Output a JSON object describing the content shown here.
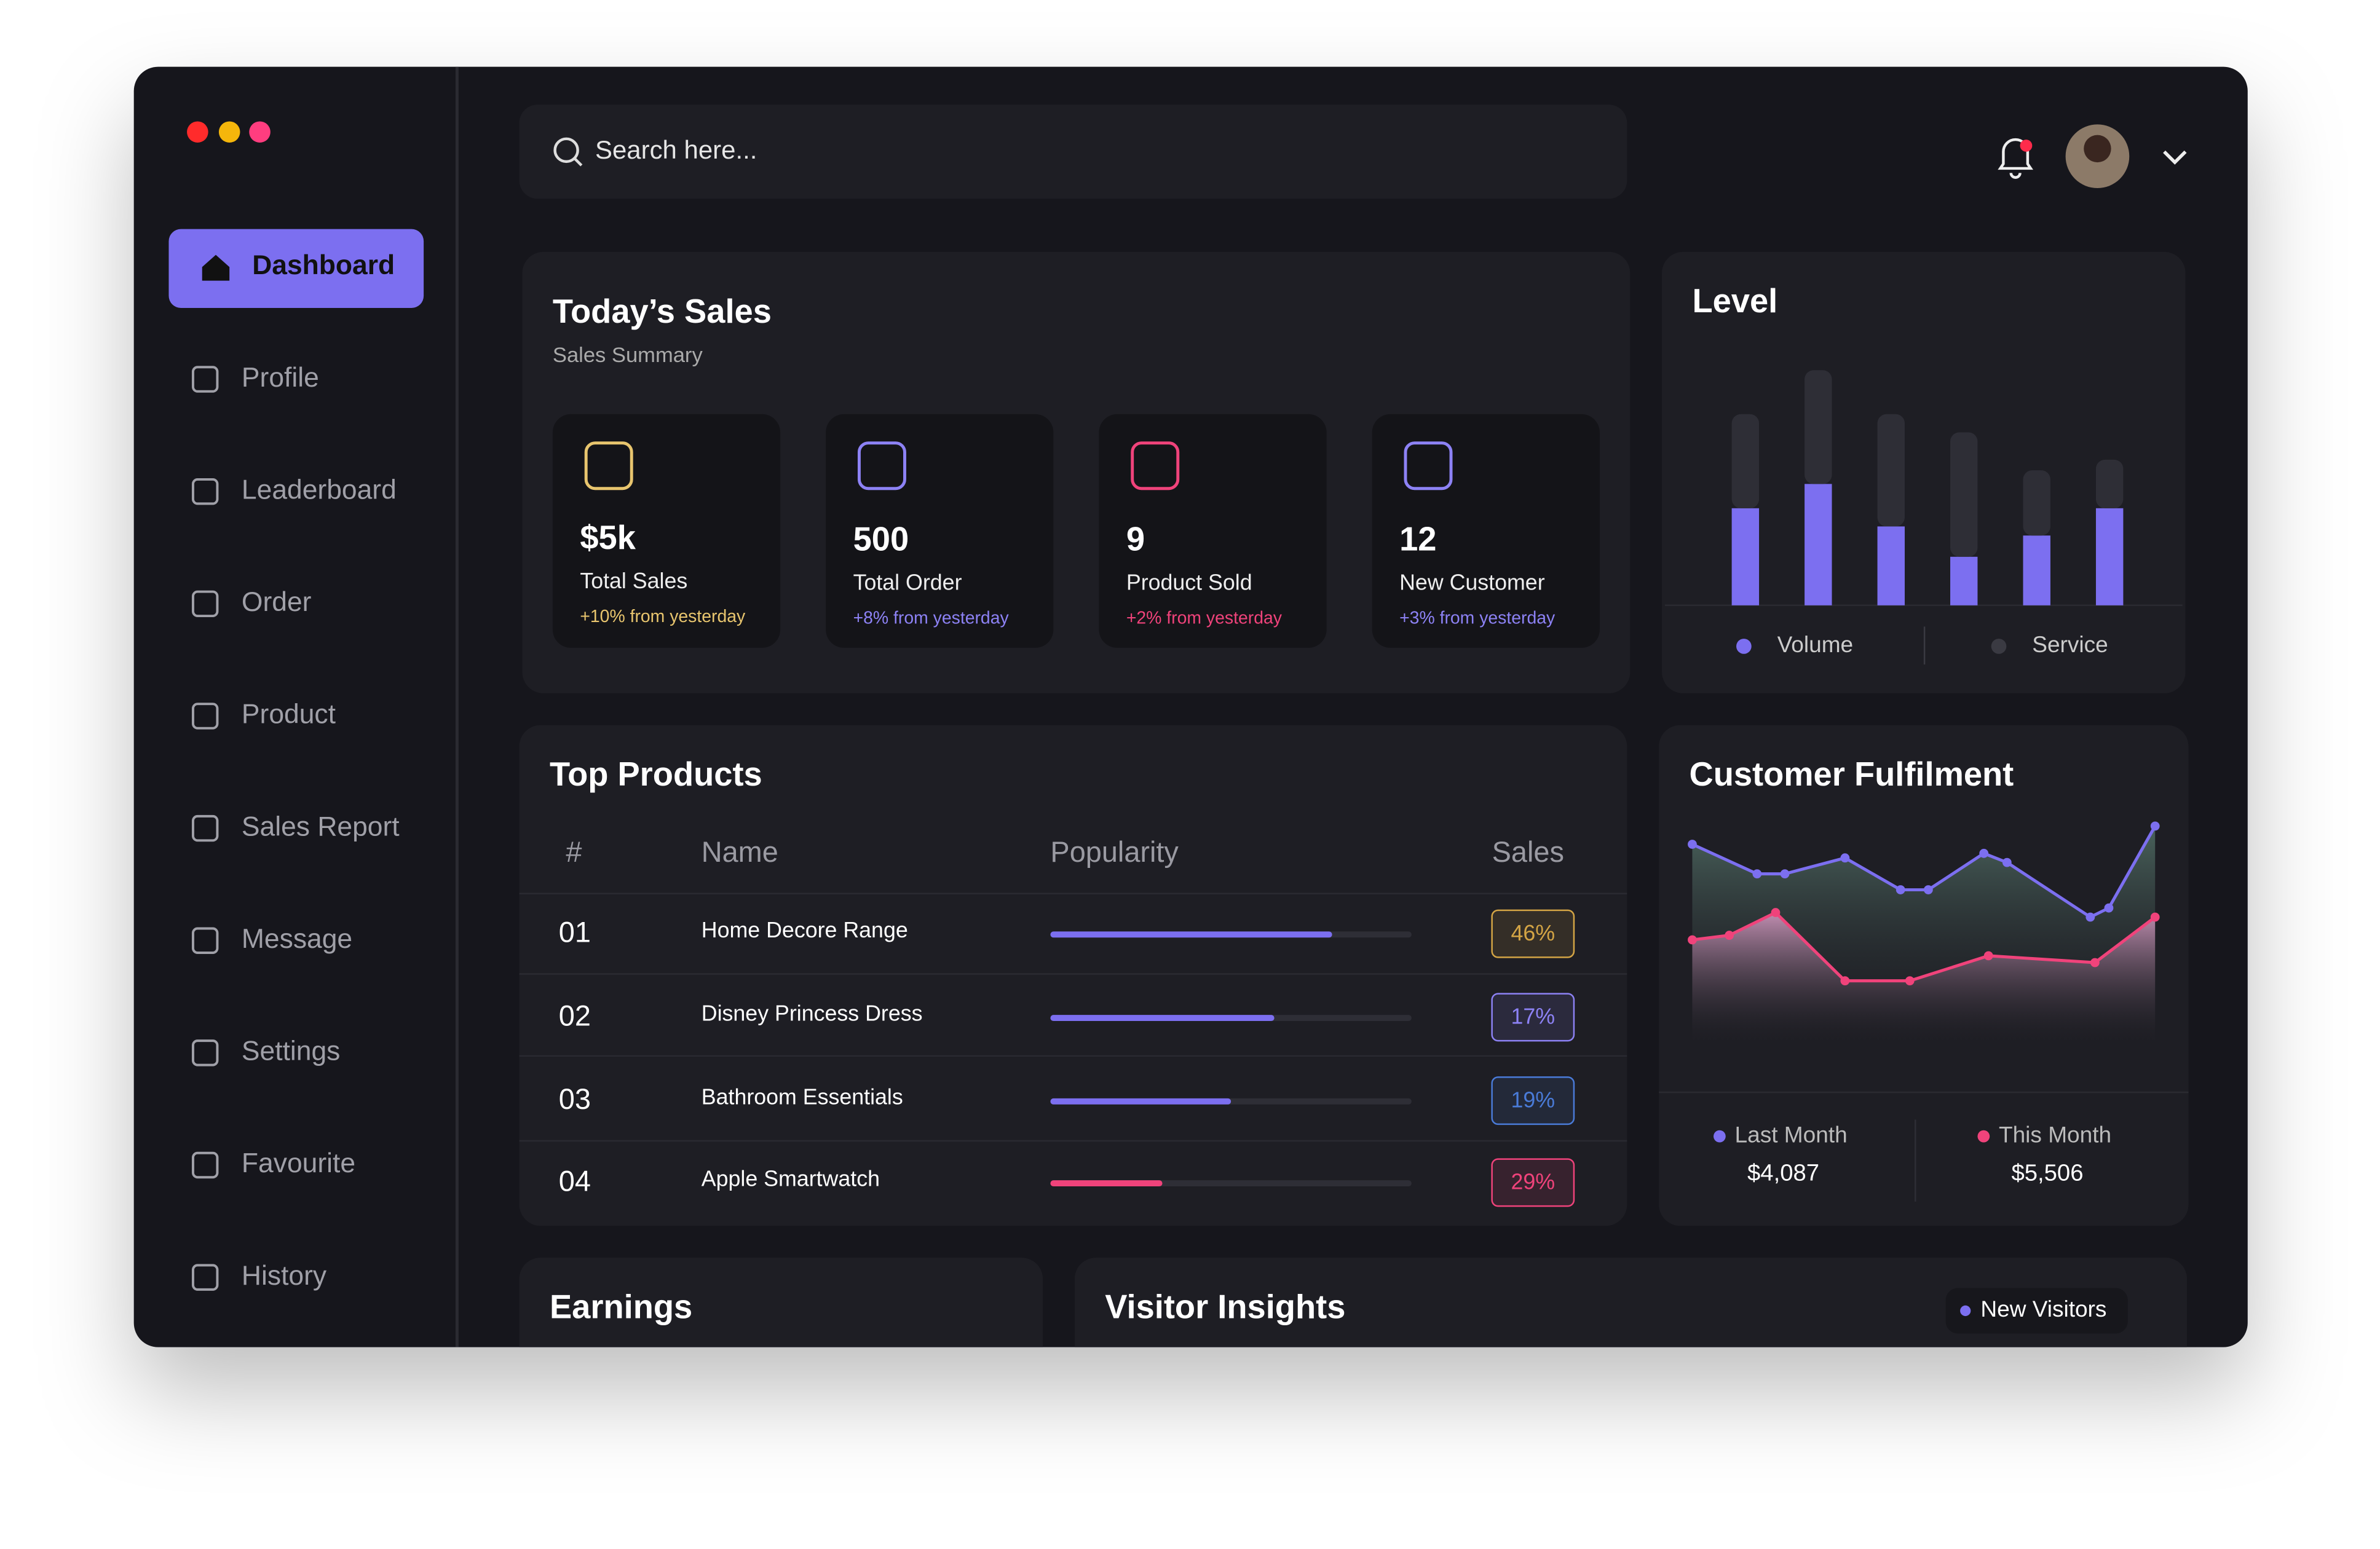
{
  "nav": [
    "Dashboard",
    "Profile",
    "Leaderboard",
    "Order",
    "Product",
    "Sales Report",
    "Message",
    "Settings",
    "Favourite",
    "History"
  ],
  "search_placeholder": "Search here...",
  "todays_sales": {
    "title": "Today’s Sales",
    "subtitle": "Sales Summary",
    "cards": [
      {
        "value": "$5k",
        "label": "Total Sales",
        "change": "+10% from yesterday",
        "color": "#e8c56e"
      },
      {
        "value": "500",
        "label": "Total Order",
        "change": "+8% from yesterday",
        "color": "#8d82f5"
      },
      {
        "value": "9",
        "label": "Product Sold",
        "change": "+2% from yesterday",
        "color": "#f0437b"
      },
      {
        "value": "12",
        "label": "New Customer",
        "change": "+3% from yesterday",
        "color": "#8d82f5"
      }
    ]
  },
  "level": {
    "type": "bar",
    "title": "Level",
    "ylim": [
      0,
      160
    ],
    "series": [
      {
        "name": "Volume",
        "color": "#7c6ff0",
        "values": [
          64,
          80,
          52,
          32,
          46,
          64
        ]
      },
      {
        "name": "Service",
        "color": "#2e2e36",
        "values": [
          62,
          75,
          74,
          82,
          43,
          32
        ]
      }
    ]
  },
  "top_products": {
    "title": "Top Products",
    "columns": [
      "#",
      "Name",
      "Popularity",
      "Sales"
    ],
    "popularity_lim": [
      0,
      100
    ],
    "rows": [
      {
        "rank": "01",
        "name": "Home Decore Range",
        "popularity": 78,
        "sales": "46%",
        "color": "#7c6ff0",
        "badge_color": "#d4a545"
      },
      {
        "rank": "02",
        "name": "Disney Princess Dress",
        "popularity": 62,
        "sales": "17%",
        "color": "#7c6ff0",
        "badge_color": "#8d82f5"
      },
      {
        "rank": "03",
        "name": "Bathroom Essentials",
        "popularity": 50,
        "sales": "19%",
        "color": "#7c6ff0",
        "badge_color": "#4a7bd8"
      },
      {
        "rank": "04",
        "name": "Apple Smartwatch",
        "popularity": 31,
        "sales": "29%",
        "color": "#f0437b",
        "badge_color": "#f0437b"
      }
    ]
  },
  "customer_fulfilment": {
    "type": "area",
    "title": "Customer Fulfilment",
    "xlim": [
      0,
      100
    ],
    "ylim": [
      0,
      100
    ],
    "series": [
      {
        "name": "Last Month",
        "total": "$4,087",
        "color": "#7c6ff0",
        "x": [
          0,
          14,
          20,
          33,
          45,
          51,
          63,
          68,
          86,
          90,
          100
        ],
        "values": [
          89,
          76,
          76,
          83,
          69,
          69,
          85,
          81,
          57,
          61,
          97
        ]
      },
      {
        "name": "This Month",
        "total": "$5,506",
        "color": "#f0437b",
        "x": [
          0,
          8,
          18,
          33,
          47,
          64,
          87,
          100
        ],
        "values": [
          47,
          49,
          59,
          29,
          29,
          40,
          37,
          57
        ]
      }
    ]
  },
  "earnings": {
    "title": "Earnings"
  },
  "visitor_insights": {
    "title": "Visitor Insights",
    "legend": "New Visitors"
  }
}
